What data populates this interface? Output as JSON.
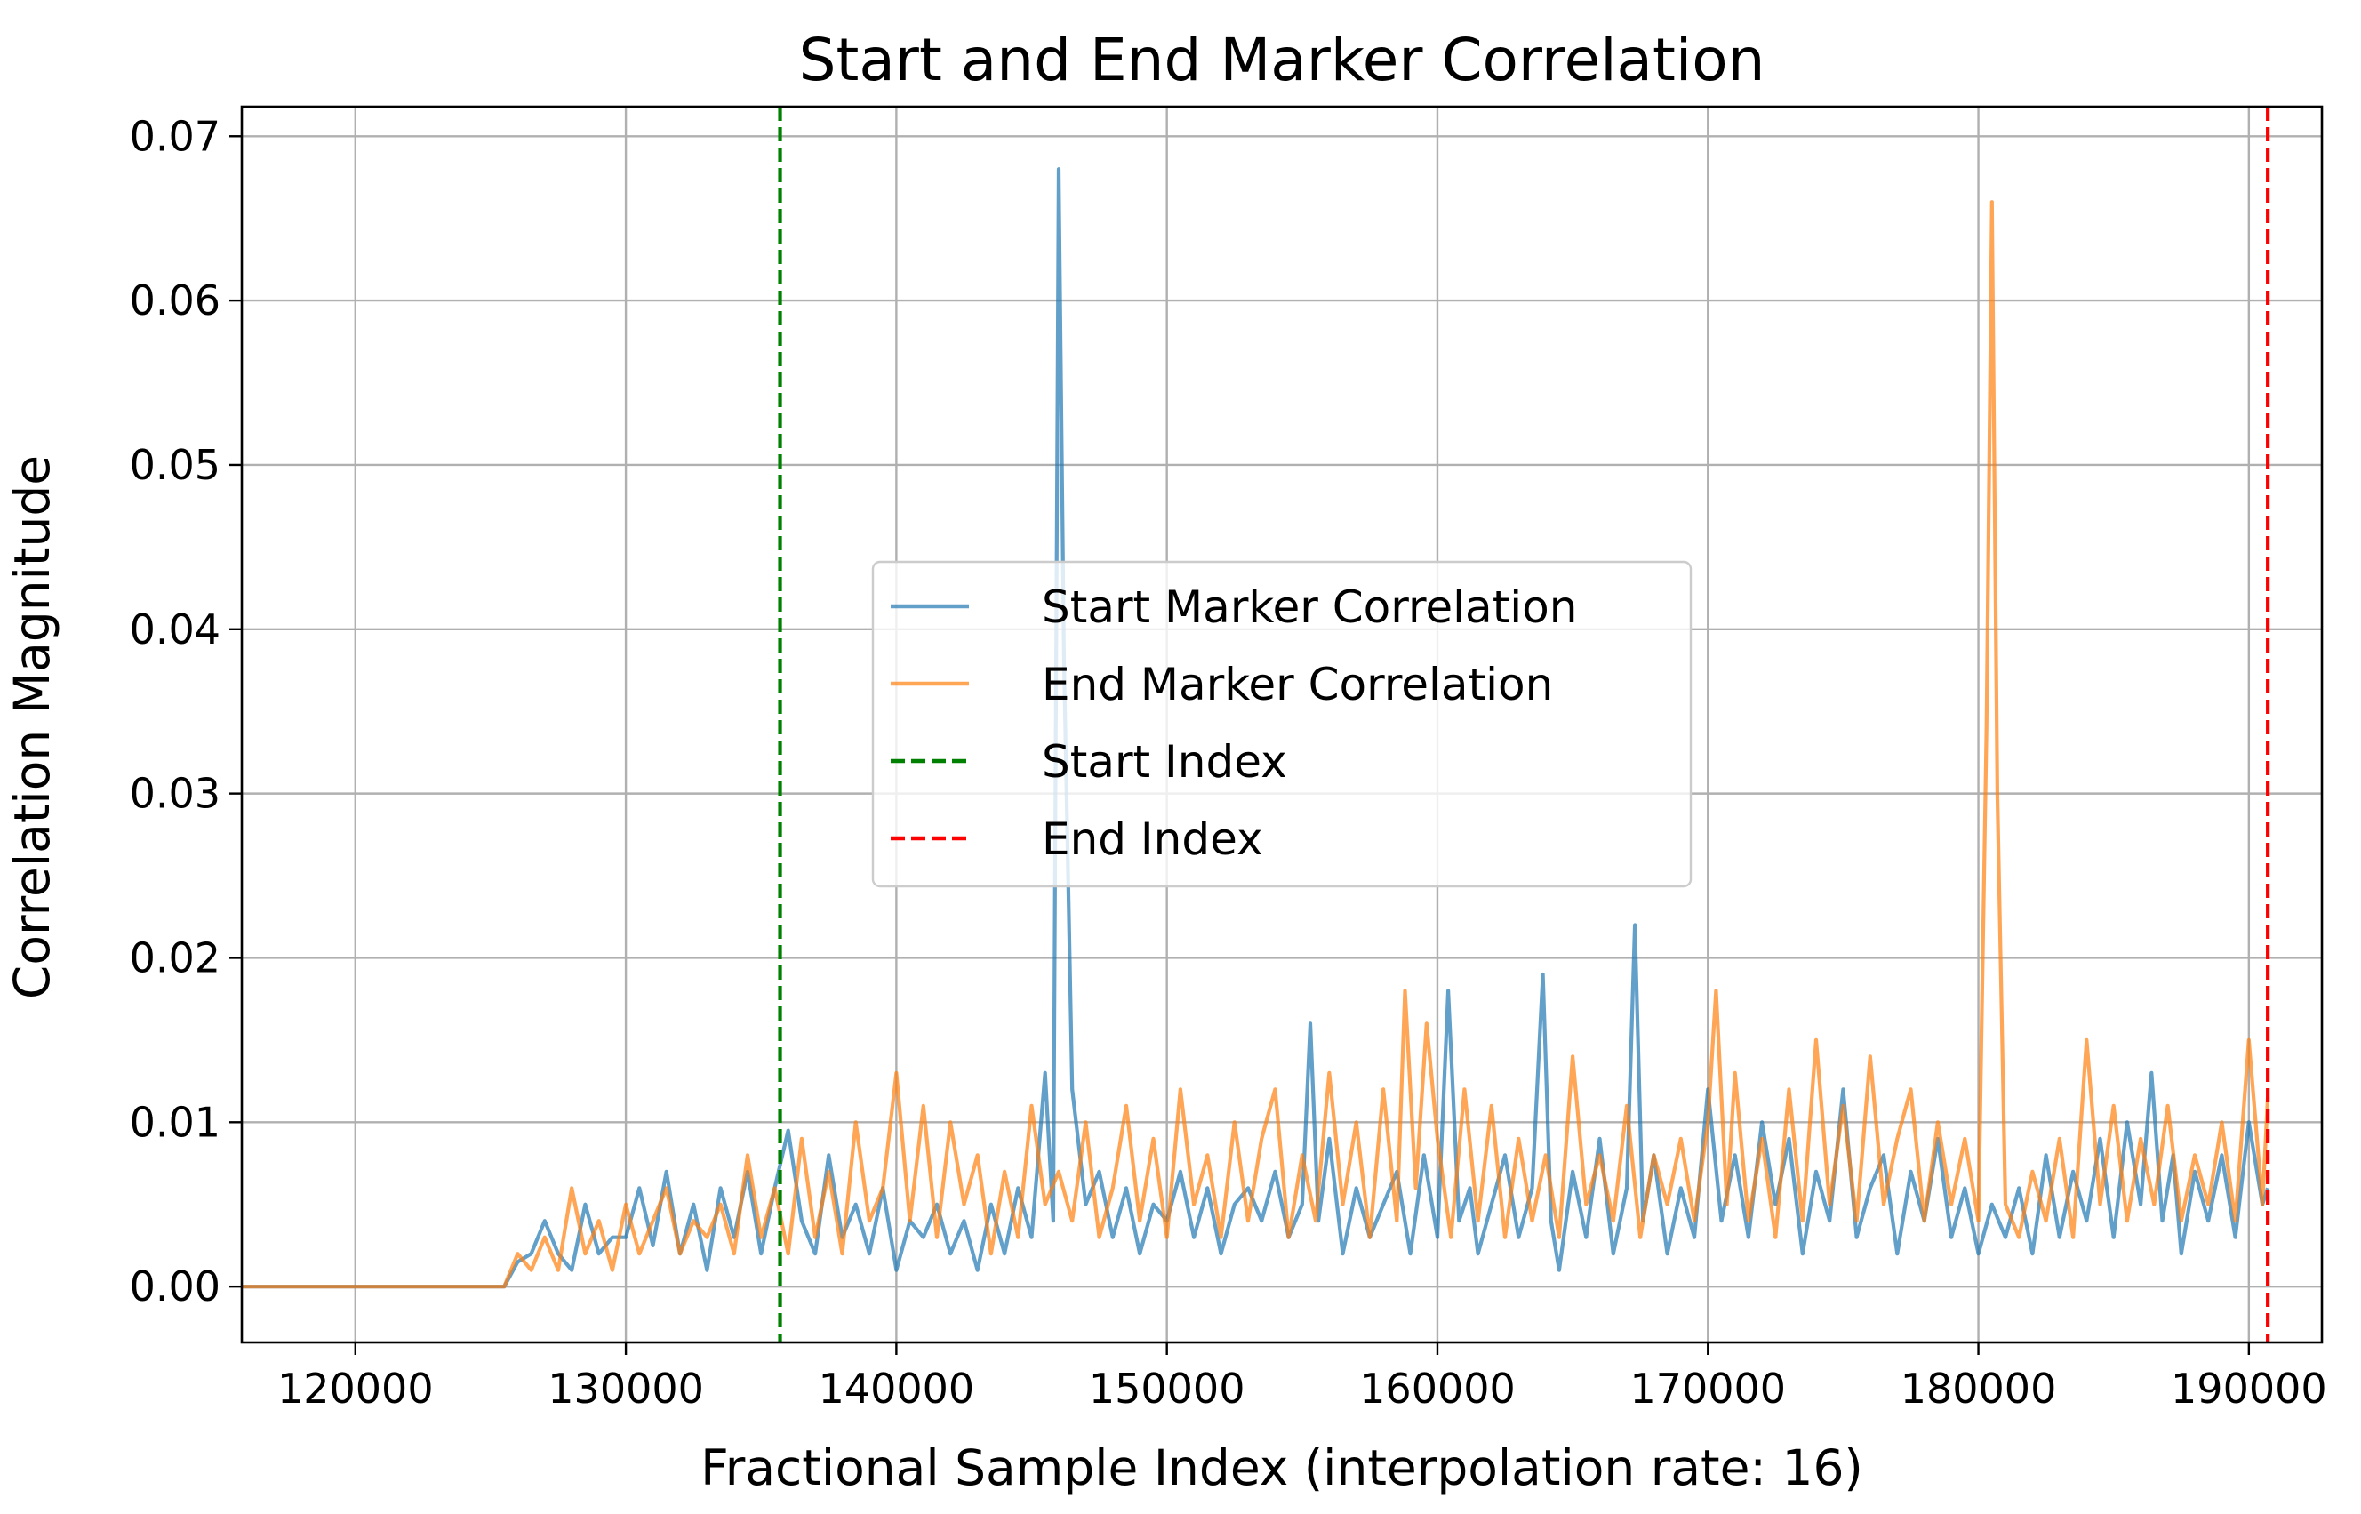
{
  "chart_data": {
    "type": "line",
    "title": "Start and End Marker Correlation",
    "xlabel": "Fractional Sample Index (interpolation rate: 16)",
    "ylabel": "Correlation Magnitude",
    "xlim": [
      115800,
      192700
    ],
    "ylim": [
      -0.0034,
      0.0718
    ],
    "xticks": [
      120000,
      130000,
      140000,
      150000,
      160000,
      170000,
      180000,
      190000
    ],
    "yticks": [
      0.0,
      0.01,
      0.02,
      0.03,
      0.04,
      0.05,
      0.06,
      0.07
    ],
    "ytick_labels": [
      "0.00",
      "0.01",
      "0.02",
      "0.03",
      "0.04",
      "0.05",
      "0.06",
      "0.07"
    ],
    "grid": true,
    "legend_position": "center",
    "series": [
      {
        "name": "Start Marker Correlation",
        "color": "#1f77b4",
        "opacity": 0.7,
        "x": [
          115800,
          125500,
          126000,
          126500,
          127000,
          127500,
          128000,
          128500,
          129000,
          129500,
          130000,
          130500,
          131000,
          131500,
          132000,
          132500,
          133000,
          133500,
          134000,
          134500,
          135000,
          135500,
          136000,
          136500,
          137000,
          137500,
          138000,
          138500,
          139000,
          139500,
          140000,
          140500,
          141000,
          141500,
          142000,
          142500,
          143000,
          143500,
          144000,
          144500,
          145000,
          145500,
          145800,
          146000,
          146200,
          146500,
          147000,
          147500,
          148000,
          148500,
          149000,
          149500,
          150000,
          150500,
          151000,
          151500,
          152000,
          152500,
          153000,
          153500,
          154000,
          154500,
          155000,
          155300,
          155600,
          156000,
          156500,
          157000,
          157500,
          158000,
          158500,
          159000,
          159500,
          160000,
          160400,
          160800,
          161200,
          161500,
          162000,
          162500,
          163000,
          163500,
          163900,
          164200,
          164500,
          165000,
          165500,
          166000,
          166500,
          167000,
          167300,
          167600,
          168000,
          168500,
          169000,
          169500,
          170000,
          170500,
          171000,
          171500,
          172000,
          172500,
          173000,
          173500,
          174000,
          174500,
          175000,
          175500,
          176000,
          176500,
          177000,
          177500,
          178000,
          178500,
          179000,
          179500,
          180000,
          180500,
          181000,
          181500,
          182000,
          182500,
          183000,
          183500,
          184000,
          184500,
          185000,
          185500,
          186000,
          186400,
          186800,
          187200,
          187500,
          188000,
          188500,
          189000,
          189500,
          190000,
          190500,
          190700
        ],
        "y": [
          0.0,
          0.0,
          0.0015,
          0.002,
          0.004,
          0.002,
          0.001,
          0.005,
          0.002,
          0.003,
          0.003,
          0.006,
          0.0025,
          0.007,
          0.002,
          0.005,
          0.001,
          0.006,
          0.003,
          0.007,
          0.002,
          0.006,
          0.0095,
          0.004,
          0.002,
          0.008,
          0.003,
          0.005,
          0.002,
          0.006,
          0.001,
          0.004,
          0.003,
          0.005,
          0.002,
          0.004,
          0.001,
          0.005,
          0.002,
          0.006,
          0.003,
          0.013,
          0.004,
          0.068,
          0.038,
          0.012,
          0.005,
          0.007,
          0.003,
          0.006,
          0.002,
          0.005,
          0.004,
          0.007,
          0.003,
          0.006,
          0.002,
          0.005,
          0.006,
          0.004,
          0.007,
          0.003,
          0.005,
          0.016,
          0.004,
          0.009,
          0.002,
          0.006,
          0.003,
          0.005,
          0.007,
          0.002,
          0.008,
          0.003,
          0.018,
          0.004,
          0.006,
          0.002,
          0.005,
          0.008,
          0.003,
          0.006,
          0.019,
          0.004,
          0.001,
          0.007,
          0.003,
          0.009,
          0.002,
          0.006,
          0.022,
          0.004,
          0.008,
          0.002,
          0.006,
          0.003,
          0.012,
          0.004,
          0.008,
          0.003,
          0.01,
          0.005,
          0.009,
          0.002,
          0.007,
          0.004,
          0.012,
          0.003,
          0.006,
          0.008,
          0.002,
          0.007,
          0.004,
          0.009,
          0.003,
          0.006,
          0.002,
          0.005,
          0.003,
          0.006,
          0.002,
          0.008,
          0.003,
          0.007,
          0.004,
          0.009,
          0.003,
          0.01,
          0.005,
          0.013,
          0.004,
          0.008,
          0.002,
          0.007,
          0.004,
          0.008,
          0.003,
          0.01,
          0.005,
          0.006
        ]
      },
      {
        "name": "End Marker Correlation",
        "color": "#ff7f0e",
        "opacity": 0.7,
        "x": [
          115800,
          125500,
          126000,
          126500,
          127000,
          127500,
          128000,
          128500,
          129000,
          129500,
          130000,
          130500,
          131000,
          131500,
          132000,
          132500,
          133000,
          133500,
          134000,
          134500,
          135000,
          135500,
          136000,
          136500,
          137000,
          137500,
          138000,
          138500,
          139000,
          139500,
          140000,
          140500,
          141000,
          141500,
          142000,
          142500,
          143000,
          143500,
          144000,
          144500,
          145000,
          145500,
          146000,
          146500,
          147000,
          147500,
          148000,
          148500,
          149000,
          149500,
          150000,
          150500,
          151000,
          151500,
          152000,
          152500,
          153000,
          153500,
          154000,
          154500,
          155000,
          155500,
          156000,
          156500,
          157000,
          157500,
          158000,
          158500,
          158800,
          159200,
          159600,
          160000,
          160500,
          161000,
          161500,
          162000,
          162500,
          163000,
          163500,
          164000,
          164500,
          165000,
          165500,
          166000,
          166500,
          167000,
          167500,
          168000,
          168500,
          169000,
          169500,
          170000,
          170300,
          170700,
          171000,
          171500,
          172000,
          172500,
          173000,
          173500,
          174000,
          174500,
          175000,
          175500,
          176000,
          176500,
          177000,
          177500,
          178000,
          178500,
          179000,
          179500,
          180000,
          180300,
          180500,
          180700,
          181000,
          181500,
          182000,
          182500,
          183000,
          183500,
          184000,
          184500,
          185000,
          185500,
          186000,
          186500,
          187000,
          187500,
          188000,
          188500,
          189000,
          189500,
          190000,
          190500,
          190700
        ],
        "y": [
          0.0,
          0.0,
          0.002,
          0.001,
          0.003,
          0.001,
          0.006,
          0.002,
          0.004,
          0.001,
          0.005,
          0.002,
          0.004,
          0.006,
          0.002,
          0.004,
          0.003,
          0.005,
          0.002,
          0.008,
          0.003,
          0.006,
          0.002,
          0.009,
          0.003,
          0.007,
          0.002,
          0.01,
          0.004,
          0.006,
          0.013,
          0.004,
          0.011,
          0.003,
          0.01,
          0.005,
          0.008,
          0.002,
          0.007,
          0.003,
          0.011,
          0.005,
          0.007,
          0.004,
          0.01,
          0.003,
          0.006,
          0.011,
          0.004,
          0.009,
          0.003,
          0.012,
          0.005,
          0.008,
          0.003,
          0.01,
          0.004,
          0.009,
          0.012,
          0.003,
          0.008,
          0.004,
          0.013,
          0.005,
          0.01,
          0.003,
          0.012,
          0.004,
          0.018,
          0.006,
          0.016,
          0.009,
          0.003,
          0.012,
          0.004,
          0.011,
          0.003,
          0.009,
          0.004,
          0.008,
          0.003,
          0.014,
          0.005,
          0.008,
          0.004,
          0.011,
          0.003,
          0.008,
          0.005,
          0.009,
          0.004,
          0.01,
          0.018,
          0.005,
          0.013,
          0.004,
          0.009,
          0.003,
          0.012,
          0.004,
          0.015,
          0.005,
          0.011,
          0.004,
          0.014,
          0.005,
          0.009,
          0.012,
          0.004,
          0.01,
          0.005,
          0.009,
          0.004,
          0.034,
          0.066,
          0.03,
          0.005,
          0.003,
          0.007,
          0.004,
          0.009,
          0.003,
          0.015,
          0.005,
          0.011,
          0.004,
          0.009,
          0.005,
          0.011,
          0.004,
          0.008,
          0.005,
          0.01,
          0.004,
          0.015,
          0.005,
          0.0115
        ]
      }
    ],
    "vlines": [
      {
        "name": "Start Index",
        "x": 135700,
        "color": "#008000",
        "style": "dashed"
      },
      {
        "name": "End Index",
        "x": 190700,
        "color": "#ff0000",
        "style": "dashed"
      }
    ]
  }
}
